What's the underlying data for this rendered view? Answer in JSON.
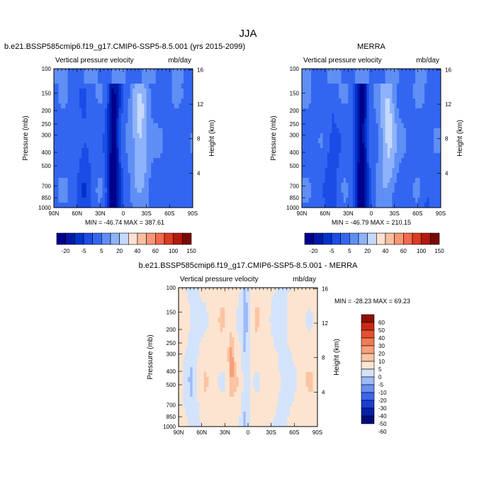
{
  "figure": {
    "title": "JJA"
  },
  "colors": {
    "full_scale": [
      "#00008c",
      "#001aa6",
      "#0033cc",
      "#1a4de6",
      "#3366f0",
      "#5f8ff5",
      "#8fb3fa",
      "#c4d9fc",
      "#fde2d2",
      "#fbbfa0",
      "#f79674",
      "#f26a4b",
      "#dc3a22",
      "#b31a0c",
      "#7a0a04"
    ],
    "diff_scale": [
      "#050a7a",
      "#0a1fa8",
      "#1a3dd6",
      "#3d64ee",
      "#6a8ff4",
      "#9fbaf8",
      "#d2e3fb",
      "#fde4d0",
      "#fbc4a3",
      "#f8a07a",
      "#f27a54",
      "#e54f30",
      "#c92a14",
      "#8f0e05"
    ]
  },
  "chart_data": [
    {
      "type": "heatmap",
      "title": "b.e21.BSSP585cmip6.f19_g17.CMIP6-SSP5-8.5.001 (yrs 2015-2099)",
      "subtitle": "Vertical pressure velocity",
      "units": "mb/day",
      "xlabel": "",
      "ylabel": "Pressure (mb)",
      "y2label": "Height (km)",
      "x_ticks": [
        "90N",
        "60N",
        "30N",
        "0",
        "30S",
        "60S",
        "90S"
      ],
      "y_ticks": [
        "100",
        "150",
        "200",
        "250",
        "300",
        "400",
        "500",
        "700",
        "850",
        "1000"
      ],
      "y_ticks_values": [
        100,
        150,
        200,
        250,
        300,
        400,
        500,
        700,
        850,
        1000
      ],
      "y2_ticks": [
        "16",
        "12",
        "8",
        "4"
      ],
      "y2_ticks_values": [
        16,
        12,
        8,
        4
      ],
      "xlim": [
        90,
        -90
      ],
      "ylim": [
        1000,
        100
      ],
      "y_scale": "log",
      "stats": "MIN = -46.74   MAX = 387.61",
      "min": -46.74,
      "max": 387.61
    },
    {
      "type": "heatmap",
      "title": "MERRA",
      "subtitle": "Vertical pressure velocity",
      "units": "mb/day",
      "xlabel": "",
      "ylabel": "Pressure (mb)",
      "y2label": "Height (km)",
      "x_ticks": [
        "90N",
        "60N",
        "30N",
        "0",
        "30S",
        "60S",
        "90S"
      ],
      "y_ticks": [
        "100",
        "150",
        "200",
        "250",
        "300",
        "400",
        "500",
        "700",
        "850",
        "1000"
      ],
      "y_ticks_values": [
        100,
        150,
        200,
        250,
        300,
        400,
        500,
        700,
        850,
        1000
      ],
      "y2_ticks": [
        "16",
        "12",
        "8",
        "4"
      ],
      "y2_ticks_values": [
        16,
        12,
        8,
        4
      ],
      "xlim": [
        90,
        -90
      ],
      "ylim": [
        1000,
        100
      ],
      "y_scale": "log",
      "stats": "MIN = -46.79   MAX = 210.15",
      "min": -46.79,
      "max": 210.15
    },
    {
      "type": "heatmap",
      "title": "b.e21.BSSP585cmip6.f19_g17.CMIP6-SSP5-8.5.001 - MERRA",
      "subtitle": "Vertical pressure velocity",
      "units": "mb/day",
      "xlabel": "",
      "ylabel": "Pressure (mb)",
      "y2label": "Height (km)",
      "x_ticks": [
        "90N",
        "60N",
        "30N",
        "0",
        "30S",
        "60S",
        "90S"
      ],
      "y_ticks": [
        "100",
        "150",
        "200",
        "250",
        "300",
        "400",
        "500",
        "700",
        "850",
        "1000"
      ],
      "y_ticks_values": [
        100,
        150,
        200,
        250,
        300,
        400,
        500,
        700,
        850,
        1000
      ],
      "y2_ticks": [
        "16",
        "12",
        "8",
        "4"
      ],
      "y2_ticks_values": [
        16,
        12,
        8,
        4
      ],
      "xlim": [
        90,
        -90
      ],
      "ylim": [
        1000,
        100
      ],
      "y_scale": "log",
      "stats": "MIN = -28.23   MAX =  69.23",
      "min": -28.23,
      "max": 69.23
    }
  ],
  "colorbars": {
    "full": {
      "labels": [
        "-20",
        "-5",
        "5",
        "20",
        "40",
        "60",
        "100",
        "150"
      ]
    },
    "diff": {
      "labels": [
        "60",
        "50",
        "40",
        "30",
        "20",
        "10",
        "5",
        "0",
        "-5",
        "-10",
        "-20",
        "-30",
        "-40",
        "-50",
        "-60"
      ]
    }
  }
}
